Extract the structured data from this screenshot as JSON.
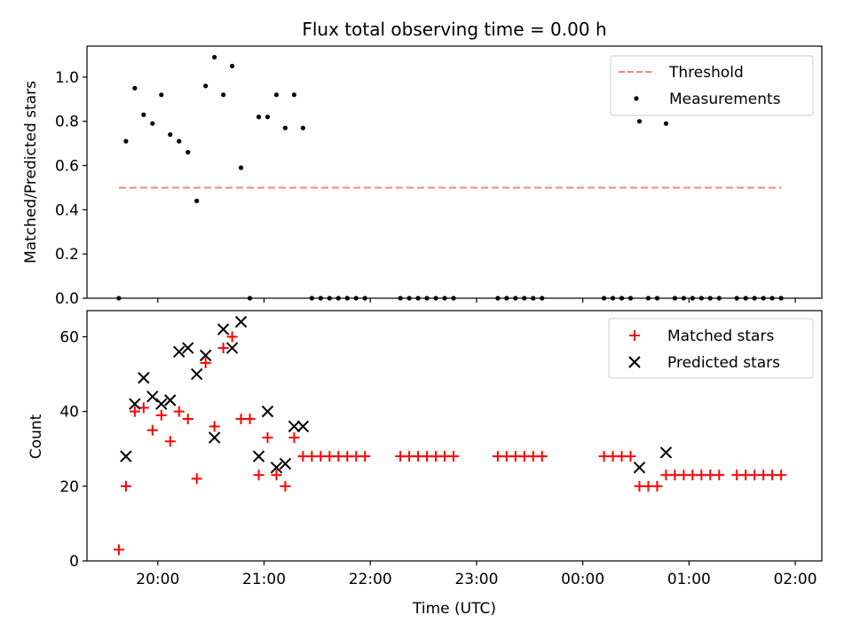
{
  "chart_data": [
    {
      "type": "scatter",
      "title": "Flux total observing time = 0.00 h",
      "xlabel": "",
      "ylabel": "Matched/Predicted stars",
      "ylim": [
        0,
        1.14
      ],
      "yticks": [
        0.0,
        0.2,
        0.4,
        0.6,
        0.8,
        1.0
      ],
      "ytick_labels": [
        "0.0",
        "0.2",
        "0.4",
        "0.6",
        "0.8",
        "1.0"
      ],
      "xlim": [
        "19:20",
        "02:15"
      ],
      "legend_position": "top-right",
      "threshold": {
        "name": "Threshold",
        "value": 0.5,
        "x_range": [
          "19:38",
          "01:52"
        ],
        "color": "#ff8080"
      },
      "series": [
        {
          "name": "Measurements",
          "marker": "dot",
          "color": "#000000",
          "points": [
            [
              "19:38",
              0.0
            ],
            [
              "19:42",
              0.71
            ],
            [
              "19:47",
              0.95
            ],
            [
              "19:52",
              0.83
            ],
            [
              "19:57",
              0.79
            ],
            [
              "20:02",
              0.92
            ],
            [
              "20:07",
              0.74
            ],
            [
              "20:12",
              0.71
            ],
            [
              "20:17",
              0.66
            ],
            [
              "20:22",
              0.44
            ],
            [
              "20:27",
              0.96
            ],
            [
              "20:32",
              1.09
            ],
            [
              "20:37",
              0.92
            ],
            [
              "20:42",
              1.05
            ],
            [
              "20:47",
              0.59
            ],
            [
              "20:52",
              0.0
            ],
            [
              "20:57",
              0.82
            ],
            [
              "21:02",
              0.82
            ],
            [
              "21:07",
              0.92
            ],
            [
              "21:12",
              0.77
            ],
            [
              "21:17",
              0.92
            ],
            [
              "21:22",
              0.77
            ],
            [
              "21:27",
              0.0
            ],
            [
              "21:32",
              0.0
            ],
            [
              "21:37",
              0.0
            ],
            [
              "21:42",
              0.0
            ],
            [
              "21:47",
              0.0
            ],
            [
              "21:52",
              0.0
            ],
            [
              "21:57",
              0.0
            ],
            [
              "22:17",
              0.0
            ],
            [
              "22:22",
              0.0
            ],
            [
              "22:27",
              0.0
            ],
            [
              "22:32",
              0.0
            ],
            [
              "22:37",
              0.0
            ],
            [
              "22:42",
              0.0
            ],
            [
              "22:47",
              0.0
            ],
            [
              "23:12",
              0.0
            ],
            [
              "23:17",
              0.0
            ],
            [
              "23:22",
              0.0
            ],
            [
              "23:27",
              0.0
            ],
            [
              "23:32",
              0.0
            ],
            [
              "23:37",
              0.0
            ],
            [
              "00:12",
              0.0
            ],
            [
              "00:17",
              0.0
            ],
            [
              "00:22",
              0.0
            ],
            [
              "00:27",
              0.0
            ],
            [
              "00:32",
              0.8
            ],
            [
              "00:37",
              0.0
            ],
            [
              "00:42",
              0.0
            ],
            [
              "00:47",
              0.79
            ],
            [
              "00:52",
              0.0
            ],
            [
              "00:57",
              0.0
            ],
            [
              "01:02",
              0.0
            ],
            [
              "01:07",
              0.0
            ],
            [
              "01:12",
              0.0
            ],
            [
              "01:17",
              0.0
            ],
            [
              "01:27",
              0.0
            ],
            [
              "01:32",
              0.0
            ],
            [
              "01:37",
              0.0
            ],
            [
              "01:42",
              0.0
            ],
            [
              "01:47",
              0.0
            ],
            [
              "01:52",
              0.0
            ]
          ]
        }
      ]
    },
    {
      "type": "scatter",
      "title": "",
      "xlabel": "Time (UTC)",
      "ylabel": "Count",
      "ylim": [
        0,
        67
      ],
      "yticks": [
        0,
        20,
        40,
        60
      ],
      "ytick_labels": [
        "0",
        "20",
        "40",
        "60"
      ],
      "xlim": [
        "19:20",
        "02:15"
      ],
      "xticks": [
        "20:00",
        "21:00",
        "22:00",
        "23:00",
        "00:00",
        "01:00",
        "02:00"
      ],
      "xtick_labels": [
        "20:00",
        "21:00",
        "22:00",
        "23:00",
        "00:00",
        "01:00",
        "02:00"
      ],
      "legend_position": "top-right",
      "series": [
        {
          "name": "Matched stars",
          "marker": "plus",
          "color": "#ff0000",
          "points": [
            [
              "19:38",
              3
            ],
            [
              "19:42",
              20
            ],
            [
              "19:47",
              40
            ],
            [
              "19:52",
              41
            ],
            [
              "19:57",
              35
            ],
            [
              "20:02",
              39
            ],
            [
              "20:07",
              32
            ],
            [
              "20:12",
              40
            ],
            [
              "20:17",
              38
            ],
            [
              "20:22",
              22
            ],
            [
              "20:27",
              53
            ],
            [
              "20:32",
              36
            ],
            [
              "20:37",
              57
            ],
            [
              "20:42",
              60
            ],
            [
              "20:47",
              38
            ],
            [
              "20:52",
              38
            ],
            [
              "20:57",
              23
            ],
            [
              "21:02",
              33
            ],
            [
              "21:07",
              23
            ],
            [
              "21:12",
              20
            ],
            [
              "21:17",
              33
            ],
            [
              "21:22",
              28
            ],
            [
              "21:27",
              28
            ],
            [
              "21:32",
              28
            ],
            [
              "21:37",
              28
            ],
            [
              "21:42",
              28
            ],
            [
              "21:47",
              28
            ],
            [
              "21:52",
              28
            ],
            [
              "21:57",
              28
            ],
            [
              "22:17",
              28
            ],
            [
              "22:22",
              28
            ],
            [
              "22:27",
              28
            ],
            [
              "22:32",
              28
            ],
            [
              "22:37",
              28
            ],
            [
              "22:42",
              28
            ],
            [
              "22:47",
              28
            ],
            [
              "23:12",
              28
            ],
            [
              "23:17",
              28
            ],
            [
              "23:22",
              28
            ],
            [
              "23:27",
              28
            ],
            [
              "23:32",
              28
            ],
            [
              "23:37",
              28
            ],
            [
              "00:12",
              28
            ],
            [
              "00:17",
              28
            ],
            [
              "00:22",
              28
            ],
            [
              "00:27",
              28
            ],
            [
              "00:32",
              20
            ],
            [
              "00:37",
              20
            ],
            [
              "00:42",
              20
            ],
            [
              "00:47",
              23
            ],
            [
              "00:52",
              23
            ],
            [
              "00:57",
              23
            ],
            [
              "01:02",
              23
            ],
            [
              "01:07",
              23
            ],
            [
              "01:12",
              23
            ],
            [
              "01:17",
              23
            ],
            [
              "01:27",
              23
            ],
            [
              "01:32",
              23
            ],
            [
              "01:37",
              23
            ],
            [
              "01:42",
              23
            ],
            [
              "01:47",
              23
            ],
            [
              "01:52",
              23
            ]
          ]
        },
        {
          "name": "Predicted stars",
          "marker": "x",
          "color": "#000000",
          "points": [
            [
              "19:42",
              28
            ],
            [
              "19:47",
              42
            ],
            [
              "19:52",
              49
            ],
            [
              "19:57",
              44
            ],
            [
              "20:02",
              42
            ],
            [
              "20:07",
              43
            ],
            [
              "20:12",
              56
            ],
            [
              "20:17",
              57
            ],
            [
              "20:22",
              50
            ],
            [
              "20:27",
              55
            ],
            [
              "20:32",
              33
            ],
            [
              "20:37",
              62
            ],
            [
              "20:42",
              57
            ],
            [
              "20:47",
              64
            ],
            [
              "20:57",
              28
            ],
            [
              "21:02",
              40
            ],
            [
              "21:07",
              25
            ],
            [
              "21:12",
              26
            ],
            [
              "21:17",
              36
            ],
            [
              "21:22",
              36
            ],
            [
              "00:32",
              25
            ],
            [
              "00:47",
              29
            ]
          ]
        }
      ]
    }
  ]
}
